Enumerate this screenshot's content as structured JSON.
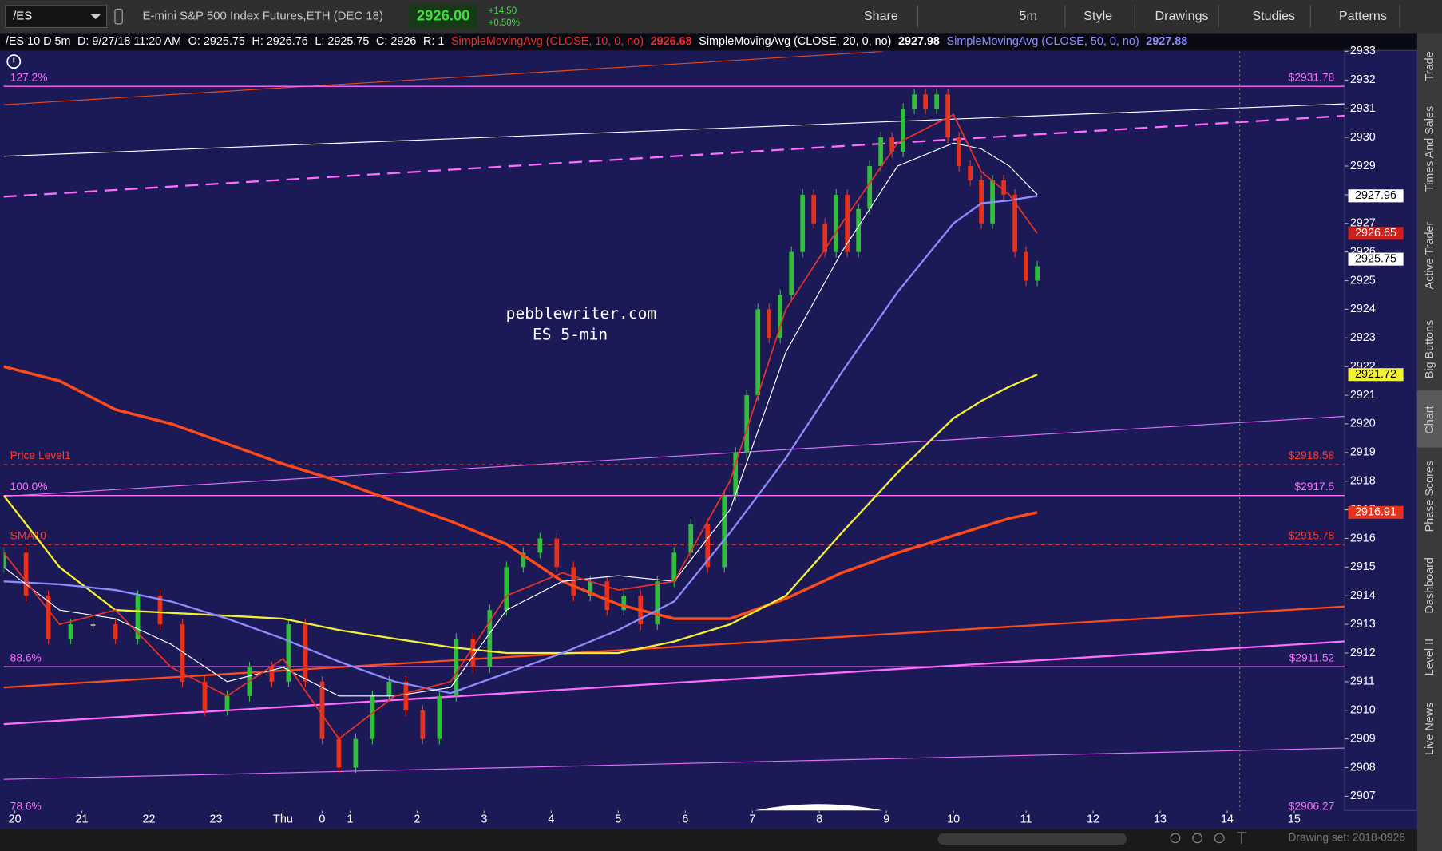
{
  "header": {
    "symbol": "/ES",
    "description": "E-mini S&P 500 Index Futures,ETH (DEC 18)",
    "last": "2926.00",
    "change": "+14.50",
    "change_pct": "+0.50%",
    "buttons": [
      "Share",
      "5m",
      "Style",
      "Drawings",
      "Studies",
      "Patterns"
    ]
  },
  "info_bar": {
    "symbol": "/ES 10 D 5m",
    "date": "D: 9/27/18 11:20 AM",
    "open": "O: 2925.75",
    "high": "H: 2926.76",
    "low": "L: 2925.75",
    "close": "C: 2926",
    "range": "R: 1",
    "studies": [
      {
        "label": "SimpleMovingAvg (CLOSE, 10, 0, no)",
        "value": "2926.68",
        "color": "#e8312a"
      },
      {
        "label": "SimpleMovingAvg (CLOSE, 20, 0, no)",
        "value": "2927.98",
        "color": "#ffffff"
      },
      {
        "label": "SimpleMovingAvg (CLOSE, 50, 0, no)",
        "value": "2927.88",
        "color": "#8c8cff"
      }
    ]
  },
  "side_tabs": [
    "Trade",
    "Times And Sales",
    "Active Trader",
    "Big Buttons",
    "Chart",
    "Phase Scores",
    "Dashboard",
    "Level II",
    "Live News"
  ],
  "watermark": [
    "pebblewriter.com",
    "ES 5-min"
  ],
  "footer": {
    "drawing_set": "Drawing set: 2018-0926"
  },
  "chart_data": {
    "type": "candlestick",
    "xlim": [
      0,
      240
    ],
    "ylim": [
      2906.5,
      2933
    ],
    "xticks": [
      {
        "value": 2,
        "label": "20"
      },
      {
        "value": 14,
        "label": "21"
      },
      {
        "value": 26,
        "label": "22"
      },
      {
        "value": 38,
        "label": "23"
      },
      {
        "value": 50,
        "label": "Thu"
      },
      {
        "value": 57,
        "label": "0"
      },
      {
        "value": 62,
        "label": "1"
      },
      {
        "value": 74,
        "label": "2"
      },
      {
        "value": 86,
        "label": "3"
      },
      {
        "value": 98,
        "label": "4"
      },
      {
        "value": 110,
        "label": "5"
      },
      {
        "value": 122,
        "label": "6"
      },
      {
        "value": 134,
        "label": "7"
      },
      {
        "value": 146,
        "label": "8"
      },
      {
        "value": 158,
        "label": "9"
      },
      {
        "value": 170,
        "label": "10"
      },
      {
        "value": 183,
        "label": "11"
      },
      {
        "value": 195,
        "label": "12"
      },
      {
        "value": 207,
        "label": "13"
      },
      {
        "value": 219,
        "label": "14"
      },
      {
        "value": 231,
        "label": "15"
      }
    ],
    "yticks": [
      2907,
      2908,
      2909,
      2910,
      2911,
      2912,
      2913,
      2914,
      2915,
      2916,
      2917,
      2918,
      2919,
      2920,
      2921,
      2922,
      2923,
      2924,
      2925,
      2926,
      2927,
      2928,
      2929,
      2930,
      2931,
      2932,
      2933
    ],
    "up_color": "#2fbf3a",
    "down_color": "#e8311a",
    "candles": {
      "x": [
        0,
        4,
        8,
        12,
        16,
        20,
        24,
        28,
        32,
        36,
        40,
        44,
        48,
        51,
        54,
        57,
        60,
        63,
        66,
        69,
        72,
        75,
        78,
        81,
        84,
        87,
        90,
        93,
        96,
        99,
        102,
        105,
        108,
        111,
        114,
        117,
        120,
        123,
        126,
        129,
        131,
        133,
        135,
        137,
        139,
        141,
        143,
        145,
        147,
        149,
        151,
        153,
        155,
        157,
        159,
        161,
        163,
        165,
        167,
        169,
        171,
        173,
        175,
        177,
        179,
        181,
        183,
        185
      ],
      "open": [
        2915,
        2915.5,
        2914,
        2912.5,
        2913,
        2913,
        2912.5,
        2914,
        2913,
        2911,
        2910,
        2910.5,
        2911.5,
        2911,
        2913,
        2911,
        2909,
        2908,
        2909,
        2910.5,
        2911,
        2910,
        2909,
        2910.5,
        2912.5,
        2911.5,
        2913.5,
        2915,
        2915.5,
        2916,
        2915,
        2914,
        2914.5,
        2913.5,
        2914,
        2913,
        2914.5,
        2915.5,
        2916.5,
        2915,
        2917.5,
        2919,
        2921,
        2924,
        2923,
        2924.5,
        2926,
        2928,
        2927,
        2926,
        2928,
        2926,
        2927.5,
        2929,
        2930,
        2929.5,
        2931,
        2931.5,
        2931,
        2931.5,
        2930,
        2929,
        2928.5,
        2927,
        2928.5,
        2928,
        2926,
        2925
      ],
      "close": [
        2915.5,
        2914,
        2912.5,
        2913,
        2913,
        2912.5,
        2914,
        2913,
        2911,
        2910,
        2910.5,
        2911.5,
        2911,
        2913,
        2911,
        2909,
        2908,
        2909,
        2910.5,
        2911,
        2910,
        2909,
        2910.5,
        2912.5,
        2911.5,
        2913.5,
        2915,
        2915.5,
        2916,
        2915,
        2914,
        2914.5,
        2913.5,
        2914,
        2913,
        2914.5,
        2915.5,
        2916.5,
        2915,
        2917.5,
        2919,
        2921,
        2924,
        2923,
        2924.5,
        2926,
        2928,
        2927,
        2926,
        2928,
        2926,
        2927.5,
        2929,
        2930,
        2929.5,
        2931,
        2931.5,
        2931,
        2931.5,
        2930,
        2929,
        2928.5,
        2927,
        2928.5,
        2928,
        2926,
        2925,
        2925.5
      ]
    },
    "ma_x": [
      0,
      10,
      20,
      30,
      40,
      50,
      60,
      70,
      80,
      90,
      100,
      110,
      120,
      130,
      140,
      150,
      160,
      170,
      175,
      180,
      185
    ],
    "series": [
      {
        "color": "#ff4a1a",
        "width": 3,
        "values": [
          2922,
          2921.5,
          2920.5,
          2920,
          2919.3,
          2918.6,
          2918,
          2917.3,
          2916.6,
          2915.8,
          2914.5,
          2913.7,
          2913.2,
          2913.2,
          2913.9,
          2914.8,
          2915.5,
          2916.1,
          2916.4,
          2916.7,
          2916.91
        ]
      },
      {
        "color": "#f2f230",
        "width": 2,
        "values": [
          2917.5,
          2915,
          2913.5,
          2913.4,
          2913.3,
          2913.2,
          2912.8,
          2912.5,
          2912.2,
          2912,
          2912,
          2912,
          2912.4,
          2913,
          2914,
          2916.2,
          2918.3,
          2920.2,
          2920.8,
          2921.3,
          2921.72
        ]
      },
      {
        "color": "#8c8cff",
        "width": 2,
        "values": [
          2914.5,
          2914.4,
          2914.2,
          2913.8,
          2913.2,
          2912.5,
          2911.7,
          2911,
          2910.6,
          2911.3,
          2912,
          2912.8,
          2913.8,
          2916.2,
          2918.8,
          2921.8,
          2924.6,
          2927,
          2927.7,
          2927.8,
          2927.96
        ]
      },
      {
        "color": "#ffffff",
        "width": 1,
        "values": [
          2915,
          2913.5,
          2913.2,
          2912.3,
          2911,
          2911.5,
          2910.5,
          2910.5,
          2910.8,
          2913.5,
          2914.5,
          2914.7,
          2914.5,
          2917,
          2922.5,
          2926,
          2929,
          2929.8,
          2929.6,
          2929,
          2928
        ]
      },
      {
        "color": "#e8312a",
        "width": 1.5,
        "values": [
          2915.5,
          2913,
          2913.5,
          2911.5,
          2910.5,
          2911.8,
          2909,
          2910.5,
          2911,
          2914,
          2914.8,
          2914.2,
          2914.5,
          2918,
          2924,
          2927,
          2929.8,
          2930.8,
          2928.8,
          2928,
          2926.65
        ]
      }
    ],
    "levels": [
      {
        "name": "127.2%",
        "value": 2931.78,
        "label": "$2931.78",
        "color": "#ff6bff",
        "dashed": false
      },
      {
        "name": "Price Level1",
        "value": 2918.58,
        "label": "$2918.58",
        "color": "#ff3a2a",
        "dashed": true
      },
      {
        "name": "100.0%",
        "value": 2917.5,
        "label": "$2917.5",
        "color": "#ff6bff",
        "dashed": false
      },
      {
        "name": "SMA10",
        "value": 2915.78,
        "label": "$2915.78",
        "color": "#ff3a2a",
        "dashed": true
      },
      {
        "name": "88.6%",
        "value": 2911.52,
        "label": "$2911.52",
        "color": "#ff6bff",
        "dashed": false
      },
      {
        "name": "78.6%",
        "value": 2906.27,
        "label": "$2906.27",
        "color": "#ff6bff",
        "dashed": false
      }
    ],
    "price_tags": [
      {
        "value": 2927.96,
        "label": "2927.96",
        "bg": "#ffffff",
        "fg": "#000000"
      },
      {
        "value": 2926.65,
        "label": "2926.65",
        "bg": "#d0201a",
        "fg": "#ffffff"
      },
      {
        "value": 2925.75,
        "label": "2925.75",
        "bg": "#ffffff",
        "fg": "#000000"
      },
      {
        "value": 2921.72,
        "label": "2921.72",
        "bg": "#f2f230",
        "fg": "#000000"
      },
      {
        "value": 2916.91,
        "label": "2916.91",
        "bg": "#e8311a",
        "fg": "#ffffff"
      }
    ]
  }
}
